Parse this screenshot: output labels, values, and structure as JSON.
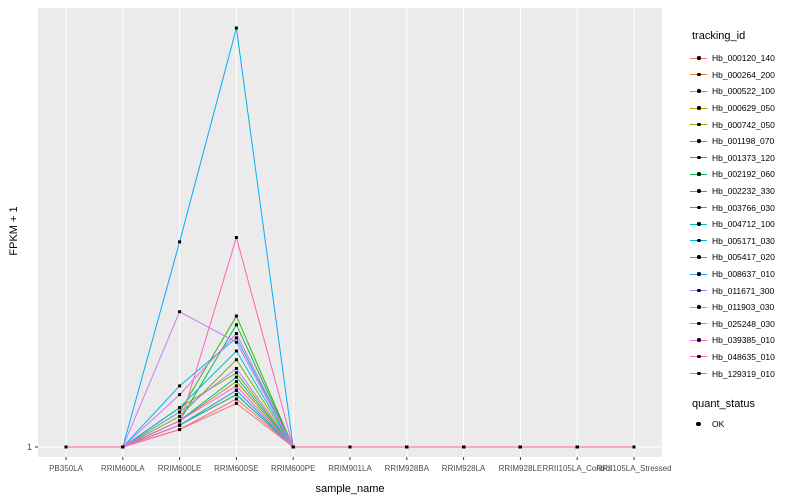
{
  "chart_data": {
    "type": "line",
    "title": "",
    "xlabel": "sample_name",
    "ylabel": "FPKM + 1",
    "ytick_labels": [
      "1"
    ],
    "ylim": [
      1,
      100
    ],
    "grid": "on",
    "panel_color": "#EBEBEB",
    "gridline_color": "#FFFFFF",
    "point_color": "#000000",
    "legend_position": "right",
    "legend_title": "tracking_id",
    "quant_legend_title": "quant_status",
    "quant_legend_items": [
      {
        "label": "OK"
      }
    ],
    "categories": [
      "PB350LA",
      "RRIM600LA",
      "RRIM600LE",
      "RRIM600SE",
      "RRIM600PE",
      "RRIM901LA",
      "RRIM928BA",
      "RRIM928LA",
      "RRIM928LE",
      "RRII105LA_Control",
      "RRII105LA_Stressed"
    ],
    "series": [
      {
        "name": "Hb_000120_140",
        "color": "#F8766D",
        "values": [
          1,
          1,
          5,
          11,
          1,
          1,
          1,
          1,
          1,
          1,
          1
        ]
      },
      {
        "name": "Hb_000264_200",
        "color": "#EA8331",
        "values": [
          1,
          1,
          6,
          13,
          1,
          1,
          1,
          1,
          1,
          1,
          1
        ]
      },
      {
        "name": "Hb_000522_100",
        "color": "#D89000",
        "values": [
          1,
          1,
          6,
          14,
          1,
          1,
          1,
          1,
          1,
          1,
          1
        ]
      },
      {
        "name": "Hb_000629_050",
        "color": "#C09B00",
        "values": [
          1,
          1,
          7,
          16,
          1,
          1,
          1,
          1,
          1,
          1,
          1
        ]
      },
      {
        "name": "Hb_000742_050",
        "color": "#A3A500",
        "values": [
          1,
          1,
          10,
          18,
          1,
          1,
          1,
          1,
          1,
          1,
          1
        ]
      },
      {
        "name": "Hb_001198_070",
        "color": "#7CAE00",
        "values": [
          1,
          1,
          8,
          21,
          1,
          1,
          1,
          1,
          1,
          1,
          1
        ]
      },
      {
        "name": "Hb_001373_120",
        "color": "#39B600",
        "values": [
          1,
          1,
          9,
          31,
          1,
          1,
          1,
          1,
          1,
          1,
          1
        ]
      },
      {
        "name": "Hb_002192_060",
        "color": "#00BB4E",
        "values": [
          1,
          1,
          7,
          29,
          1,
          1,
          1,
          1,
          1,
          1,
          1
        ]
      },
      {
        "name": "Hb_002232_330",
        "color": "#00BF7D",
        "values": [
          1,
          1,
          6,
          13,
          1,
          1,
          1,
          1,
          1,
          1,
          1
        ]
      },
      {
        "name": "Hb_003766_030",
        "color": "#00C1A3",
        "values": [
          1,
          1,
          7,
          17,
          1,
          1,
          1,
          1,
          1,
          1,
          1
        ]
      },
      {
        "name": "Hb_004712_100",
        "color": "#00BFC4",
        "values": [
          1,
          1,
          10,
          23,
          1,
          1,
          1,
          1,
          1,
          1,
          1
        ]
      },
      {
        "name": "Hb_005171_030",
        "color": "#00BAE0",
        "values": [
          1,
          1,
          15,
          26,
          1,
          1,
          1,
          1,
          1,
          1,
          1
        ]
      },
      {
        "name": "Hb_005417_020",
        "color": "#00B0F6",
        "values": [
          1,
          1,
          48,
          97,
          1,
          1,
          1,
          1,
          1,
          1,
          1
        ]
      },
      {
        "name": "Hb_008637_010",
        "color": "#35A2FF",
        "values": [
          1,
          1,
          6,
          14,
          1,
          1,
          1,
          1,
          1,
          1,
          1
        ]
      },
      {
        "name": "Hb_011671_300",
        "color": "#9590FF",
        "values": [
          1,
          1,
          9,
          19,
          1,
          1,
          1,
          1,
          1,
          1,
          1
        ]
      },
      {
        "name": "Hb_011903_030",
        "color": "#C77CFF",
        "values": [
          1,
          1,
          32,
          25,
          1,
          1,
          1,
          1,
          1,
          1,
          1
        ]
      },
      {
        "name": "Hb_025248_030",
        "color": "#E76BF3",
        "values": [
          1,
          1,
          13,
          27,
          1,
          1,
          1,
          1,
          1,
          1,
          1
        ]
      },
      {
        "name": "Hb_039385_010",
        "color": "#FA62DB",
        "values": [
          1,
          1,
          7,
          15,
          1,
          1,
          1,
          1,
          1,
          1,
          1
        ]
      },
      {
        "name": "Hb_048635_010",
        "color": "#FF62BC",
        "values": [
          1,
          1,
          6,
          49,
          1,
          1,
          1,
          1,
          1,
          1,
          1
        ]
      },
      {
        "name": "Hb_129319_010",
        "color": "#FF6A98",
        "values": [
          1,
          1,
          5,
          12,
          1,
          1,
          1,
          1,
          1,
          1,
          1
        ]
      }
    ]
  }
}
